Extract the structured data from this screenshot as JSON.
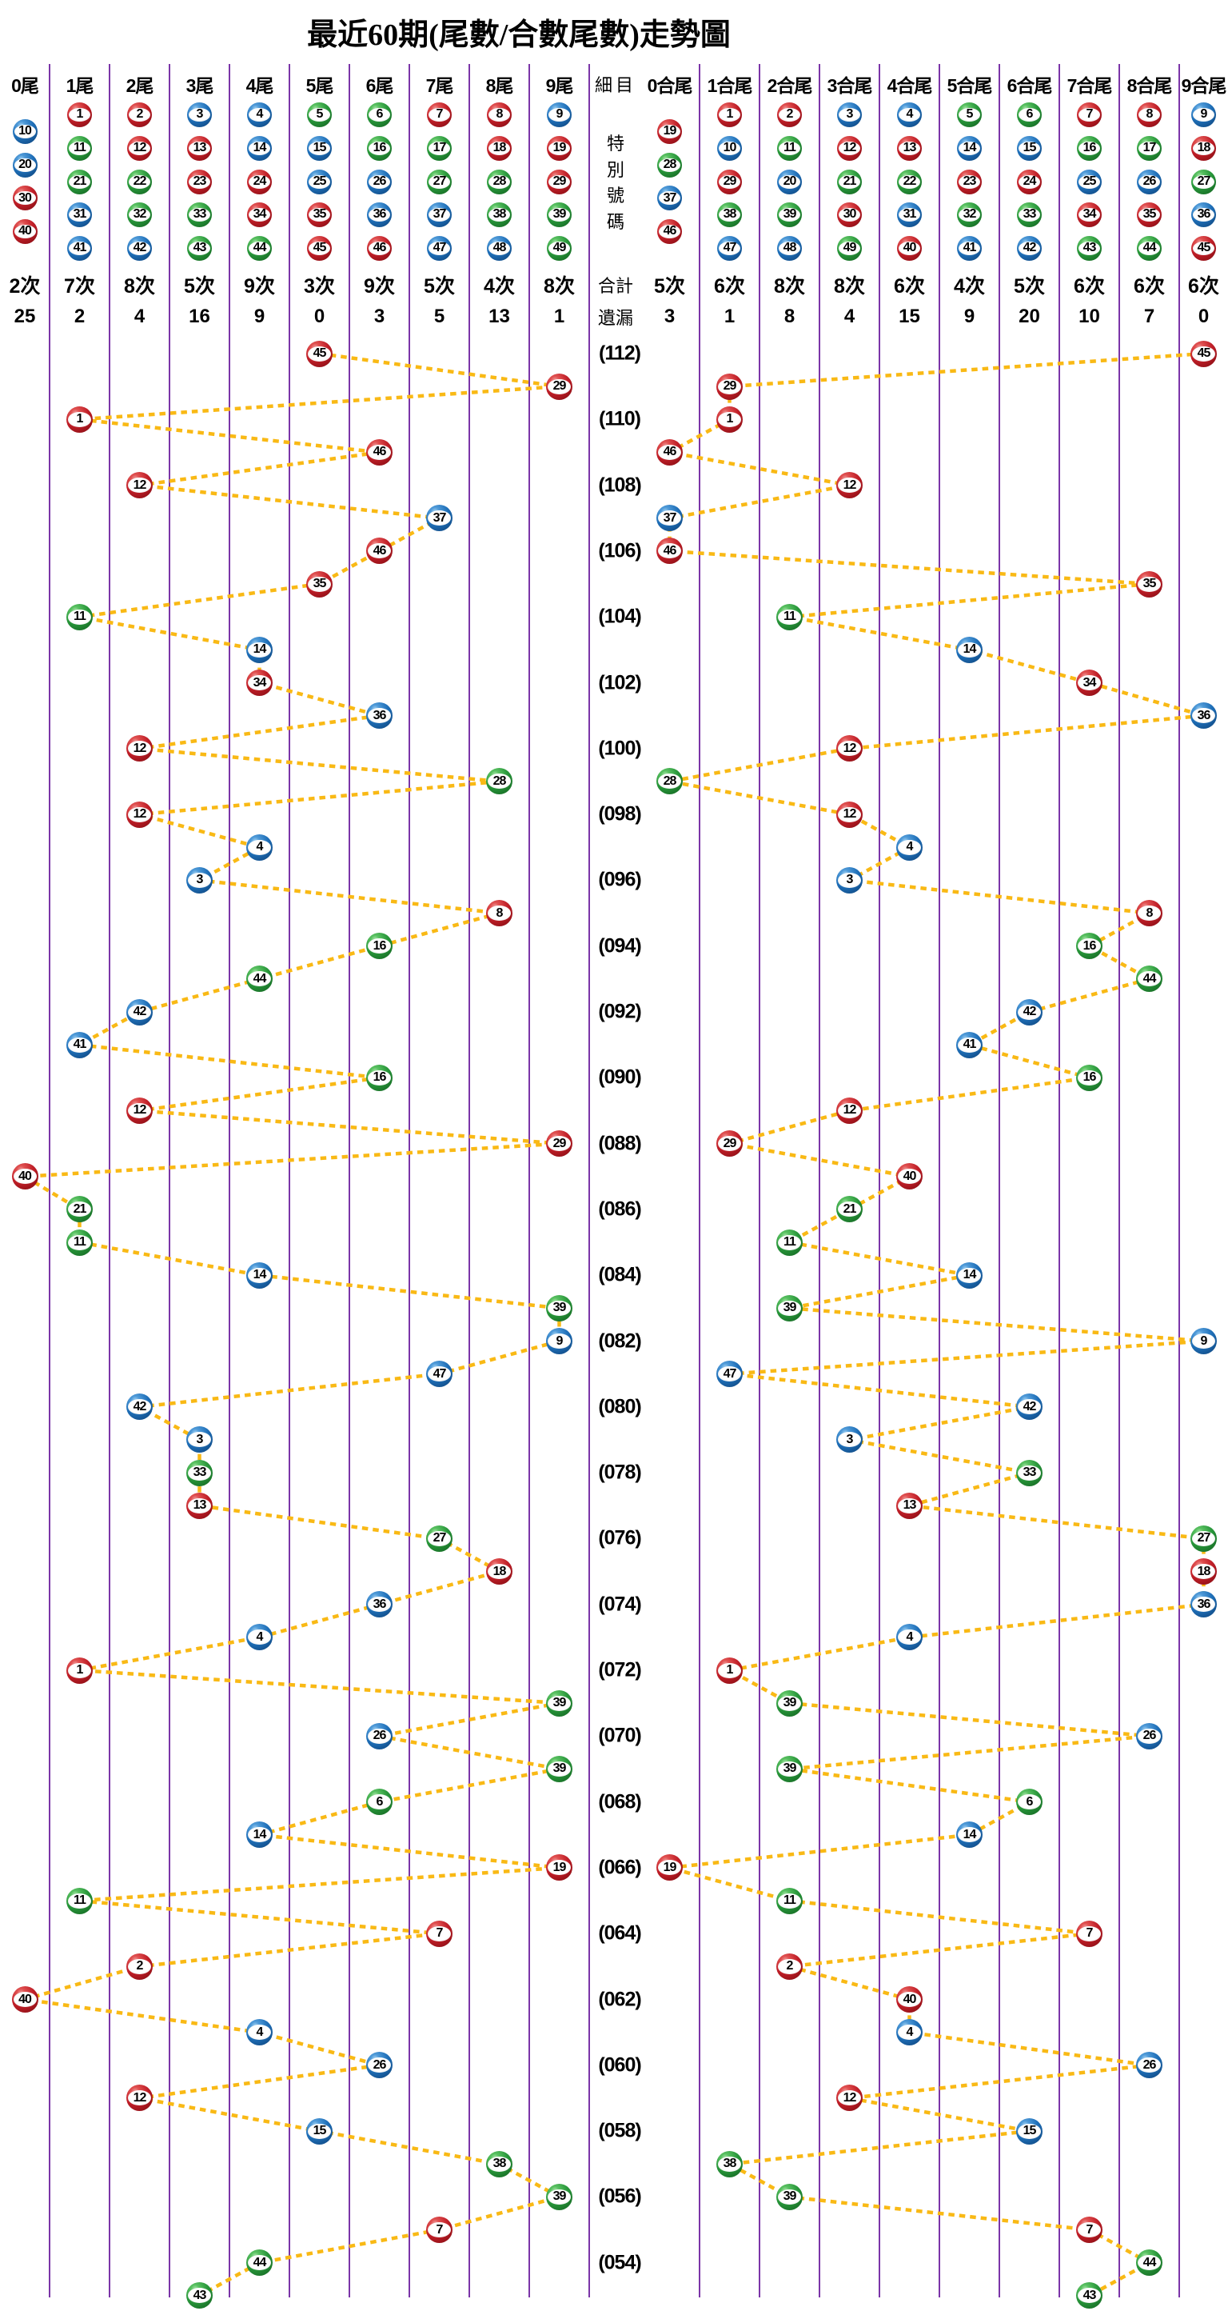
{
  "title": "最近60期(尾數/合數尾數)走勢圖",
  "colors": {
    "red": "#C01F28",
    "blue": "#1F6FB8",
    "green": "#28963A",
    "trend_line": "#F9B915",
    "grid_line": "#7B35A8",
    "text": "#000000"
  },
  "detail_column": {
    "header": "細目",
    "special_label": "特別號碼",
    "total_label": "合計",
    "miss_label": "遺漏"
  },
  "left_columns": [
    {
      "label": "0尾",
      "balls": [
        {
          "n": 10,
          "c": "blue"
        },
        {
          "n": 20,
          "c": "blue"
        },
        {
          "n": 30,
          "c": "red"
        },
        {
          "n": 40,
          "c": "red"
        }
      ],
      "count": "2次",
      "miss": "25"
    },
    {
      "label": "1尾",
      "balls": [
        {
          "n": 1,
          "c": "red"
        },
        {
          "n": 11,
          "c": "green"
        },
        {
          "n": 21,
          "c": "green"
        },
        {
          "n": 31,
          "c": "blue"
        },
        {
          "n": 41,
          "c": "blue"
        }
      ],
      "count": "7次",
      "miss": "2"
    },
    {
      "label": "2尾",
      "balls": [
        {
          "n": 2,
          "c": "red"
        },
        {
          "n": 12,
          "c": "red"
        },
        {
          "n": 22,
          "c": "green"
        },
        {
          "n": 32,
          "c": "green"
        },
        {
          "n": 42,
          "c": "blue"
        }
      ],
      "count": "8次",
      "miss": "4"
    },
    {
      "label": "3尾",
      "balls": [
        {
          "n": 3,
          "c": "blue"
        },
        {
          "n": 13,
          "c": "red"
        },
        {
          "n": 23,
          "c": "red"
        },
        {
          "n": 33,
          "c": "green"
        },
        {
          "n": 43,
          "c": "green"
        }
      ],
      "count": "5次",
      "miss": "16"
    },
    {
      "label": "4尾",
      "balls": [
        {
          "n": 4,
          "c": "blue"
        },
        {
          "n": 14,
          "c": "blue"
        },
        {
          "n": 24,
          "c": "red"
        },
        {
          "n": 34,
          "c": "red"
        },
        {
          "n": 44,
          "c": "green"
        }
      ],
      "count": "9次",
      "miss": "9"
    },
    {
      "label": "5尾",
      "balls": [
        {
          "n": 5,
          "c": "green"
        },
        {
          "n": 15,
          "c": "blue"
        },
        {
          "n": 25,
          "c": "blue"
        },
        {
          "n": 35,
          "c": "red"
        },
        {
          "n": 45,
          "c": "red"
        }
      ],
      "count": "3次",
      "miss": "0"
    },
    {
      "label": "6尾",
      "balls": [
        {
          "n": 6,
          "c": "green"
        },
        {
          "n": 16,
          "c": "green"
        },
        {
          "n": 26,
          "c": "blue"
        },
        {
          "n": 36,
          "c": "blue"
        },
        {
          "n": 46,
          "c": "red"
        }
      ],
      "count": "9次",
      "miss": "3"
    },
    {
      "label": "7尾",
      "balls": [
        {
          "n": 7,
          "c": "red"
        },
        {
          "n": 17,
          "c": "green"
        },
        {
          "n": 27,
          "c": "green"
        },
        {
          "n": 37,
          "c": "blue"
        },
        {
          "n": 47,
          "c": "blue"
        }
      ],
      "count": "5次",
      "miss": "5"
    },
    {
      "label": "8尾",
      "balls": [
        {
          "n": 8,
          "c": "red"
        },
        {
          "n": 18,
          "c": "red"
        },
        {
          "n": 28,
          "c": "green"
        },
        {
          "n": 38,
          "c": "green"
        },
        {
          "n": 48,
          "c": "blue"
        }
      ],
      "count": "4次",
      "miss": "13"
    },
    {
      "label": "9尾",
      "balls": [
        {
          "n": 9,
          "c": "blue"
        },
        {
          "n": 19,
          "c": "red"
        },
        {
          "n": 29,
          "c": "red"
        },
        {
          "n": 39,
          "c": "green"
        },
        {
          "n": 49,
          "c": "green"
        }
      ],
      "count": "8次",
      "miss": "1"
    }
  ],
  "right_columns": [
    {
      "label": "0合尾",
      "balls": [
        {
          "n": 19,
          "c": "red"
        },
        {
          "n": 28,
          "c": "green"
        },
        {
          "n": 37,
          "c": "blue"
        },
        {
          "n": 46,
          "c": "red"
        }
      ],
      "count": "5次",
      "miss": "3"
    },
    {
      "label": "1合尾",
      "balls": [
        {
          "n": 1,
          "c": "red"
        },
        {
          "n": 10,
          "c": "blue"
        },
        {
          "n": 29,
          "c": "red"
        },
        {
          "n": 38,
          "c": "green"
        },
        {
          "n": 47,
          "c": "blue"
        }
      ],
      "count": "6次",
      "miss": "1"
    },
    {
      "label": "2合尾",
      "balls": [
        {
          "n": 2,
          "c": "red"
        },
        {
          "n": 11,
          "c": "green"
        },
        {
          "n": 20,
          "c": "blue"
        },
        {
          "n": 39,
          "c": "green"
        },
        {
          "n": 48,
          "c": "blue"
        }
      ],
      "count": "8次",
      "miss": "8"
    },
    {
      "label": "3合尾",
      "balls": [
        {
          "n": 3,
          "c": "blue"
        },
        {
          "n": 12,
          "c": "red"
        },
        {
          "n": 21,
          "c": "green"
        },
        {
          "n": 30,
          "c": "red"
        },
        {
          "n": 49,
          "c": "green"
        }
      ],
      "count": "8次",
      "miss": "4"
    },
    {
      "label": "4合尾",
      "balls": [
        {
          "n": 4,
          "c": "blue"
        },
        {
          "n": 13,
          "c": "red"
        },
        {
          "n": 22,
          "c": "green"
        },
        {
          "n": 31,
          "c": "blue"
        },
        {
          "n": 40,
          "c": "red"
        }
      ],
      "count": "6次",
      "miss": "15"
    },
    {
      "label": "5合尾",
      "balls": [
        {
          "n": 5,
          "c": "green"
        },
        {
          "n": 14,
          "c": "blue"
        },
        {
          "n": 23,
          "c": "red"
        },
        {
          "n": 32,
          "c": "green"
        },
        {
          "n": 41,
          "c": "blue"
        }
      ],
      "count": "4次",
      "miss": "9"
    },
    {
      "label": "6合尾",
      "balls": [
        {
          "n": 6,
          "c": "green"
        },
        {
          "n": 15,
          "c": "blue"
        },
        {
          "n": 24,
          "c": "red"
        },
        {
          "n": 33,
          "c": "green"
        },
        {
          "n": 42,
          "c": "blue"
        }
      ],
      "count": "5次",
      "miss": "20"
    },
    {
      "label": "7合尾",
      "balls": [
        {
          "n": 7,
          "c": "red"
        },
        {
          "n": 16,
          "c": "green"
        },
        {
          "n": 25,
          "c": "blue"
        },
        {
          "n": 34,
          "c": "red"
        },
        {
          "n": 43,
          "c": "green"
        }
      ],
      "count": "6次",
      "miss": "10"
    },
    {
      "label": "8合尾",
      "balls": [
        {
          "n": 8,
          "c": "red"
        },
        {
          "n": 17,
          "c": "green"
        },
        {
          "n": 26,
          "c": "blue"
        },
        {
          "n": 35,
          "c": "red"
        },
        {
          "n": 44,
          "c": "green"
        }
      ],
      "count": "6次",
      "miss": "7"
    },
    {
      "label": "9合尾",
      "balls": [
        {
          "n": 9,
          "c": "blue"
        },
        {
          "n": 18,
          "c": "red"
        },
        {
          "n": 27,
          "c": "green"
        },
        {
          "n": 36,
          "c": "blue"
        },
        {
          "n": 45,
          "c": "red"
        }
      ],
      "count": "6次",
      "miss": "0"
    }
  ],
  "chart_data": {
    "type": "scatter",
    "title": "最近60期(尾數/合數尾數)走勢圖",
    "x_axis_left": [
      "0尾",
      "1尾",
      "2尾",
      "3尾",
      "4尾",
      "5尾",
      "6尾",
      "7尾",
      "8尾",
      "9尾"
    ],
    "x_axis_right": [
      "0合尾",
      "1合尾",
      "2合尾",
      "3合尾",
      "4合尾",
      "5合尾",
      "6合尾",
      "7合尾",
      "8合尾",
      "9合尾"
    ],
    "legend_position": "none",
    "grid": "vertical-lines",
    "rows": [
      {
        "period": "(112)",
        "num": 45,
        "color": "red",
        "tail": 5,
        "sum_tail": 9
      },
      {
        "period": "",
        "num": 29,
        "color": "red",
        "tail": 9,
        "sum_tail": 1
      },
      {
        "period": "(110)",
        "num": 1,
        "color": "red",
        "tail": 1,
        "sum_tail": 1
      },
      {
        "period": "",
        "num": 46,
        "color": "red",
        "tail": 6,
        "sum_tail": 0
      },
      {
        "period": "(108)",
        "num": 12,
        "color": "red",
        "tail": 2,
        "sum_tail": 3
      },
      {
        "period": "",
        "num": 37,
        "color": "blue",
        "tail": 7,
        "sum_tail": 0
      },
      {
        "period": "(106)",
        "num": 46,
        "color": "red",
        "tail": 6,
        "sum_tail": 0
      },
      {
        "period": "",
        "num": 35,
        "color": "red",
        "tail": 5,
        "sum_tail": 8
      },
      {
        "period": "(104)",
        "num": 11,
        "color": "green",
        "tail": 1,
        "sum_tail": 2
      },
      {
        "period": "",
        "num": 14,
        "color": "blue",
        "tail": 4,
        "sum_tail": 5
      },
      {
        "period": "(102)",
        "num": 34,
        "color": "red",
        "tail": 4,
        "sum_tail": 7
      },
      {
        "period": "",
        "num": 36,
        "color": "blue",
        "tail": 6,
        "sum_tail": 9
      },
      {
        "period": "(100)",
        "num": 12,
        "color": "red",
        "tail": 2,
        "sum_tail": 3
      },
      {
        "period": "",
        "num": 28,
        "color": "green",
        "tail": 8,
        "sum_tail": 0
      },
      {
        "period": "(098)",
        "num": 12,
        "color": "red",
        "tail": 2,
        "sum_tail": 3
      },
      {
        "period": "",
        "num": 4,
        "color": "blue",
        "tail": 4,
        "sum_tail": 4
      },
      {
        "period": "(096)",
        "num": 3,
        "color": "blue",
        "tail": 3,
        "sum_tail": 3
      },
      {
        "period": "",
        "num": 8,
        "color": "red",
        "tail": 8,
        "sum_tail": 8
      },
      {
        "period": "(094)",
        "num": 16,
        "color": "green",
        "tail": 6,
        "sum_tail": 7
      },
      {
        "period": "",
        "num": 44,
        "color": "green",
        "tail": 4,
        "sum_tail": 8
      },
      {
        "period": "(092)",
        "num": 42,
        "color": "blue",
        "tail": 2,
        "sum_tail": 6
      },
      {
        "period": "",
        "num": 41,
        "color": "blue",
        "tail": 1,
        "sum_tail": 5
      },
      {
        "period": "(090)",
        "num": 16,
        "color": "green",
        "tail": 6,
        "sum_tail": 7
      },
      {
        "period": "",
        "num": 12,
        "color": "red",
        "tail": 2,
        "sum_tail": 3
      },
      {
        "period": "(088)",
        "num": 29,
        "color": "red",
        "tail": 9,
        "sum_tail": 1
      },
      {
        "period": "",
        "num": 40,
        "color": "red",
        "tail": 0,
        "sum_tail": 4
      },
      {
        "period": "(086)",
        "num": 21,
        "color": "green",
        "tail": 1,
        "sum_tail": 3
      },
      {
        "period": "",
        "num": 11,
        "color": "green",
        "tail": 1,
        "sum_tail": 2
      },
      {
        "period": "(084)",
        "num": 14,
        "color": "blue",
        "tail": 4,
        "sum_tail": 5
      },
      {
        "period": "",
        "num": 39,
        "color": "green",
        "tail": 9,
        "sum_tail": 2
      },
      {
        "period": "(082)",
        "num": 9,
        "color": "blue",
        "tail": 9,
        "sum_tail": 9
      },
      {
        "period": "",
        "num": 47,
        "color": "blue",
        "tail": 7,
        "sum_tail": 1
      },
      {
        "period": "(080)",
        "num": 42,
        "color": "blue",
        "tail": 2,
        "sum_tail": 6
      },
      {
        "period": "",
        "num": 3,
        "color": "blue",
        "tail": 3,
        "sum_tail": 3
      },
      {
        "period": "(078)",
        "num": 33,
        "color": "green",
        "tail": 3,
        "sum_tail": 6
      },
      {
        "period": "",
        "num": 13,
        "color": "red",
        "tail": 3,
        "sum_tail": 4
      },
      {
        "period": "(076)",
        "num": 27,
        "color": "green",
        "tail": 7,
        "sum_tail": 9
      },
      {
        "period": "",
        "num": 18,
        "color": "red",
        "tail": 8,
        "sum_tail": 9
      },
      {
        "period": "(074)",
        "num": 36,
        "color": "blue",
        "tail": 6,
        "sum_tail": 9
      },
      {
        "period": "",
        "num": 4,
        "color": "blue",
        "tail": 4,
        "sum_tail": 4
      },
      {
        "period": "(072)",
        "num": 1,
        "color": "red",
        "tail": 1,
        "sum_tail": 1
      },
      {
        "period": "",
        "num": 39,
        "color": "green",
        "tail": 9,
        "sum_tail": 2
      },
      {
        "period": "(070)",
        "num": 26,
        "color": "blue",
        "tail": 6,
        "sum_tail": 8
      },
      {
        "period": "",
        "num": 39,
        "color": "green",
        "tail": 9,
        "sum_tail": 2
      },
      {
        "period": "(068)",
        "num": 6,
        "color": "green",
        "tail": 6,
        "sum_tail": 6
      },
      {
        "period": "",
        "num": 14,
        "color": "blue",
        "tail": 4,
        "sum_tail": 5
      },
      {
        "period": "(066)",
        "num": 19,
        "color": "red",
        "tail": 9,
        "sum_tail": 0
      },
      {
        "period": "",
        "num": 11,
        "color": "green",
        "tail": 1,
        "sum_tail": 2
      },
      {
        "period": "(064)",
        "num": 7,
        "color": "red",
        "tail": 7,
        "sum_tail": 7
      },
      {
        "period": "",
        "num": 2,
        "color": "red",
        "tail": 2,
        "sum_tail": 2
      },
      {
        "period": "(062)",
        "num": 40,
        "color": "red",
        "tail": 0,
        "sum_tail": 4
      },
      {
        "period": "",
        "num": 4,
        "color": "blue",
        "tail": 4,
        "sum_tail": 4
      },
      {
        "period": "(060)",
        "num": 26,
        "color": "blue",
        "tail": 6,
        "sum_tail": 8
      },
      {
        "period": "",
        "num": 12,
        "color": "red",
        "tail": 2,
        "sum_tail": 3
      },
      {
        "period": "(058)",
        "num": 15,
        "color": "blue",
        "tail": 5,
        "sum_tail": 6
      },
      {
        "period": "",
        "num": 38,
        "color": "green",
        "tail": 8,
        "sum_tail": 1
      },
      {
        "period": "(056)",
        "num": 39,
        "color": "green",
        "tail": 9,
        "sum_tail": 2
      },
      {
        "period": "",
        "num": 7,
        "color": "red",
        "tail": 7,
        "sum_tail": 7
      },
      {
        "period": "(054)",
        "num": 44,
        "color": "green",
        "tail": 4,
        "sum_tail": 8
      },
      {
        "period": "",
        "num": 43,
        "color": "green",
        "tail": 3,
        "sum_tail": 7
      }
    ]
  }
}
